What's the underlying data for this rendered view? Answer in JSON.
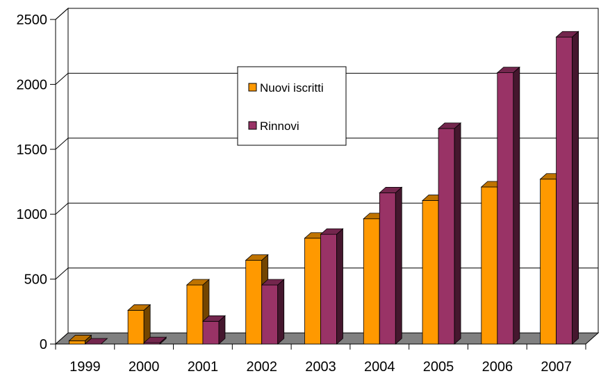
{
  "chart_data": {
    "type": "bar",
    "categories": [
      "1999",
      "2000",
      "2001",
      "2002",
      "2003",
      "2004",
      "2005",
      "2006",
      "2007"
    ],
    "series": [
      {
        "name": "Nuovi iscritti",
        "values": [
          25,
          260,
          455,
          645,
          815,
          965,
          1105,
          1210,
          1270
        ],
        "color": "#ff9900"
      },
      {
        "name": "Rinnovi",
        "values": [
          0,
          10,
          175,
          455,
          845,
          1165,
          1660,
          2090,
          2365
        ],
        "color": "#993366"
      }
    ],
    "title": "",
    "xlabel": "",
    "ylabel": "",
    "ylim": [
      0,
      2500
    ],
    "yticks": [
      0,
      500,
      1000,
      1500,
      2000,
      2500
    ],
    "grid": true,
    "style": "3d-column",
    "legend_position": "upper-middle"
  }
}
